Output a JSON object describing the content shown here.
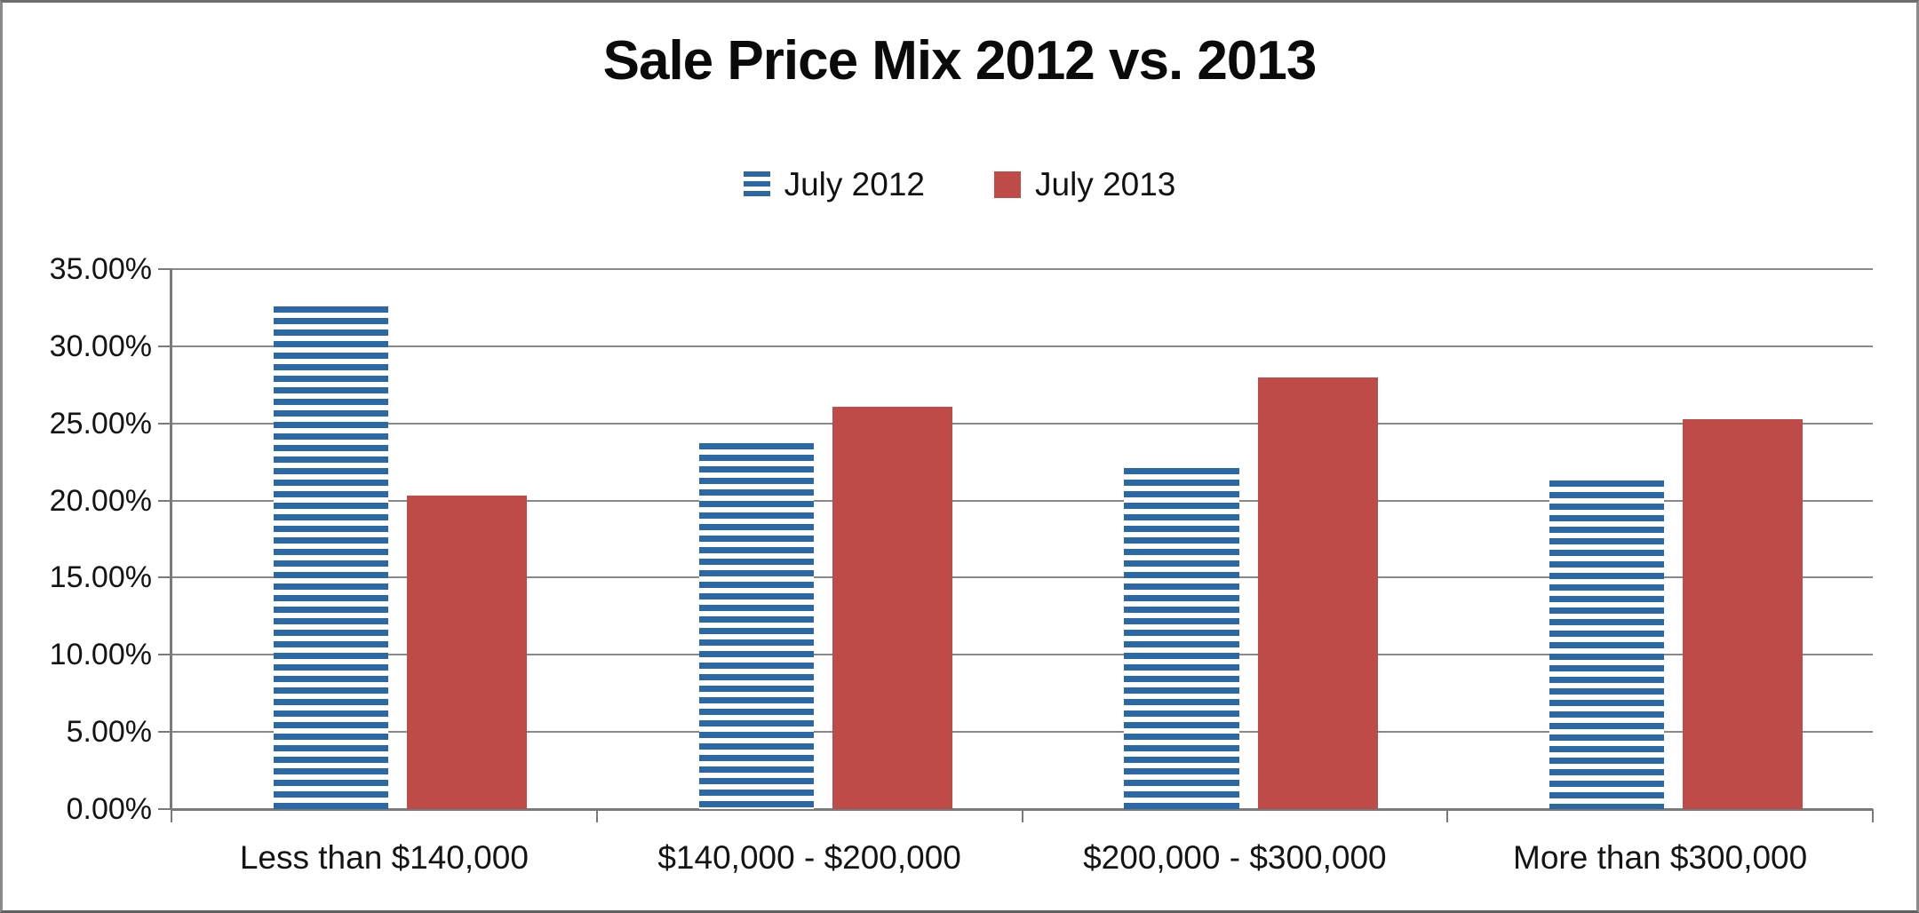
{
  "window": {
    "background": "#ffffff",
    "border_color": "#8a8a8a"
  },
  "chart_data": {
    "type": "bar",
    "title": "Sale Price Mix 2012 vs. 2013",
    "categories": [
      "Less than $140,000",
      "$140,000 - $200,000",
      "$200,000 - $300,000",
      "More than $300,000"
    ],
    "series": [
      {
        "name": "July 2012",
        "color": "#2B68A6",
        "fill": "horizontal-stripes",
        "values": [
          32.6,
          23.7,
          22.1,
          21.3
        ]
      },
      {
        "name": "July 2013",
        "color": "#BE4B48",
        "fill": "solid",
        "values": [
          20.3,
          26.1,
          28.0,
          25.3
        ]
      }
    ],
    "unit": "%",
    "xlabel": "",
    "ylabel": "",
    "ylim": [
      0,
      35
    ],
    "y_tick_step": 5,
    "y_tick_labels": [
      "0.00%",
      "5.00%",
      "10.00%",
      "15.00%",
      "20.00%",
      "25.00%",
      "30.00%",
      "35.00%"
    ],
    "grid": true,
    "gridline_color": "#898989",
    "axis_color": "#7a7a7a",
    "text_color": "#141414",
    "legend_position": "top-center"
  }
}
